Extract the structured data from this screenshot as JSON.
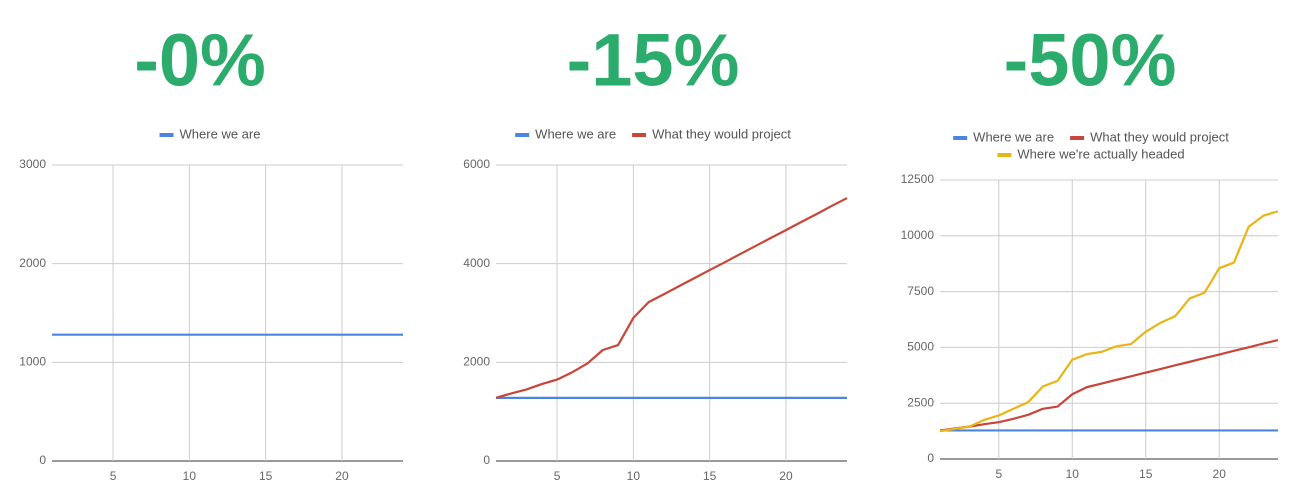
{
  "chart_data": [
    {
      "type": "line",
      "title": "-0%",
      "xlim": [
        1,
        24
      ],
      "xticks": [
        5,
        10,
        15,
        20
      ],
      "ylim": [
        0,
        3000
      ],
      "yticks": [
        0,
        1000,
        2000,
        3000
      ],
      "grid": true,
      "legend": "top",
      "x": [
        1,
        2,
        3,
        4,
        5,
        6,
        7,
        8,
        9,
        10,
        11,
        12,
        13,
        14,
        15,
        16,
        17,
        18,
        19,
        20,
        21,
        22,
        23,
        24
      ],
      "series": [
        {
          "name": "Where we are",
          "color": "#4a86e0",
          "values": [
            1280,
            1280,
            1280,
            1280,
            1280,
            1280,
            1280,
            1280,
            1280,
            1280,
            1280,
            1280,
            1280,
            1280,
            1280,
            1280,
            1280,
            1280,
            1280,
            1280,
            1280,
            1280,
            1280,
            1280
          ]
        }
      ]
    },
    {
      "type": "line",
      "title": "-15%",
      "xlim": [
        1,
        24
      ],
      "xticks": [
        5,
        10,
        15,
        20
      ],
      "ylim": [
        0,
        6000
      ],
      "yticks": [
        0,
        2000,
        4000,
        6000
      ],
      "grid": true,
      "legend": "top",
      "x": [
        1,
        2,
        3,
        4,
        5,
        6,
        7,
        8,
        9,
        10,
        11,
        12,
        13,
        14,
        15,
        16,
        17,
        18,
        19,
        20,
        21,
        22,
        23,
        24
      ],
      "series": [
        {
          "name": "Where we are",
          "color": "#4a86e0",
          "values": [
            1280,
            1280,
            1280,
            1280,
            1280,
            1280,
            1280,
            1280,
            1280,
            1280,
            1280,
            1280,
            1280,
            1280,
            1280,
            1280,
            1280,
            1280,
            1280,
            1280,
            1280,
            1280,
            1280,
            1280
          ]
        },
        {
          "name": "What they would project",
          "color": "#c8453a",
          "values": [
            1280,
            1370,
            1450,
            1560,
            1650,
            1800,
            1980,
            2250,
            2350,
            2900,
            3220,
            3380,
            3545,
            3707,
            3870,
            4030,
            4195,
            4357,
            4520,
            4680,
            4845,
            5005,
            5170,
            5330
          ]
        }
      ]
    },
    {
      "type": "line",
      "title": "-50%",
      "xlim": [
        1,
        24
      ],
      "xticks": [
        5,
        10,
        15,
        20
      ],
      "ylim": [
        0,
        12500
      ],
      "yticks": [
        0,
        2500,
        5000,
        7500,
        10000,
        12500
      ],
      "grid": true,
      "legend": "top",
      "x": [
        1,
        2,
        3,
        4,
        5,
        6,
        7,
        8,
        9,
        10,
        11,
        12,
        13,
        14,
        15,
        16,
        17,
        18,
        19,
        20,
        21,
        22,
        23,
        24
      ],
      "series": [
        {
          "name": "Where we are",
          "color": "#4a86e0",
          "values": [
            1280,
            1280,
            1280,
            1280,
            1280,
            1280,
            1280,
            1280,
            1280,
            1280,
            1280,
            1280,
            1280,
            1280,
            1280,
            1280,
            1280,
            1280,
            1280,
            1280,
            1280,
            1280,
            1280,
            1280
          ]
        },
        {
          "name": "What they would project",
          "color": "#c8453a",
          "values": [
            1280,
            1370,
            1450,
            1560,
            1650,
            1800,
            1980,
            2250,
            2350,
            2900,
            3220,
            3380,
            3545,
            3707,
            3870,
            4030,
            4195,
            4357,
            4520,
            4680,
            4845,
            5005,
            5170,
            5330
          ]
        },
        {
          "name": "Where we're actually headed",
          "color": "#e9b516",
          "values": [
            1250,
            1350,
            1450,
            1750,
            1950,
            2250,
            2550,
            3250,
            3500,
            4450,
            4700,
            4800,
            5050,
            5150,
            5700,
            6100,
            6400,
            7200,
            7450,
            8550,
            8800,
            10400,
            10900,
            11100
          ]
        }
      ]
    }
  ]
}
